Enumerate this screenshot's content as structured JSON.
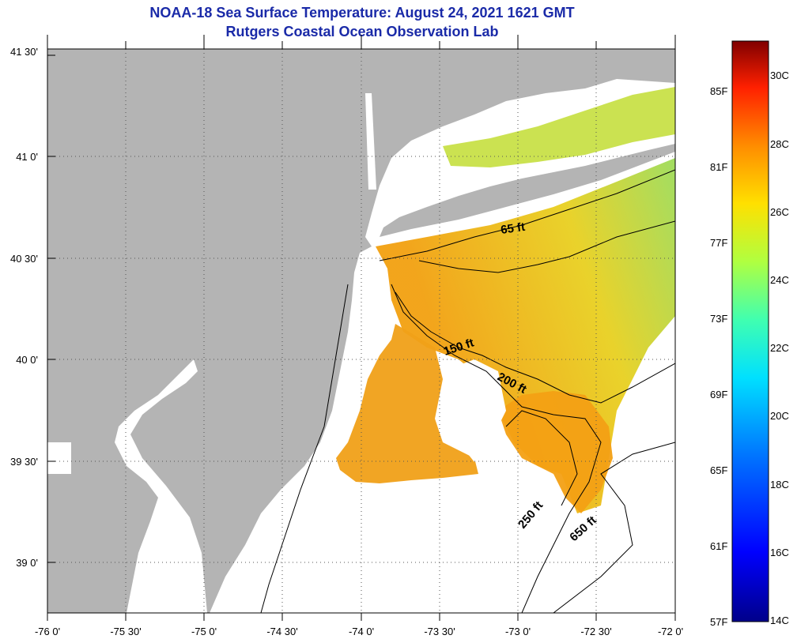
{
  "title": {
    "line1": "NOAA-18 Sea Surface Temperature:  August 24, 2021 1621 GMT",
    "line2": "Rutgers Coastal Ocean Observation Lab"
  },
  "map": {
    "lon_ticks": [
      "-76 0'",
      "-75 30'",
      "-75 0'",
      "-74 30'",
      "-74 0'",
      "-73 30'",
      "-73 0'",
      "-72 30'",
      "-72 0'"
    ],
    "lat_ticks": [
      "41 30'",
      "41 0'",
      "40 30'",
      "40 0'",
      "39 30'",
      "39 0'"
    ],
    "contour_labels": [
      "65 ft",
      "150 ft",
      "200 ft",
      "250 ft",
      "650 ft"
    ],
    "land_color": "#b4b4b4",
    "no_data_color": "#ffffff"
  },
  "colorbar": {
    "fahrenheit_labels": [
      "85F",
      "81F",
      "77F",
      "73F",
      "69F",
      "65F",
      "61F",
      "57F"
    ],
    "celsius_labels": [
      "30C",
      "28C",
      "26C",
      "24C",
      "22C",
      "20C",
      "18C",
      "16C",
      "14C"
    ]
  }
}
